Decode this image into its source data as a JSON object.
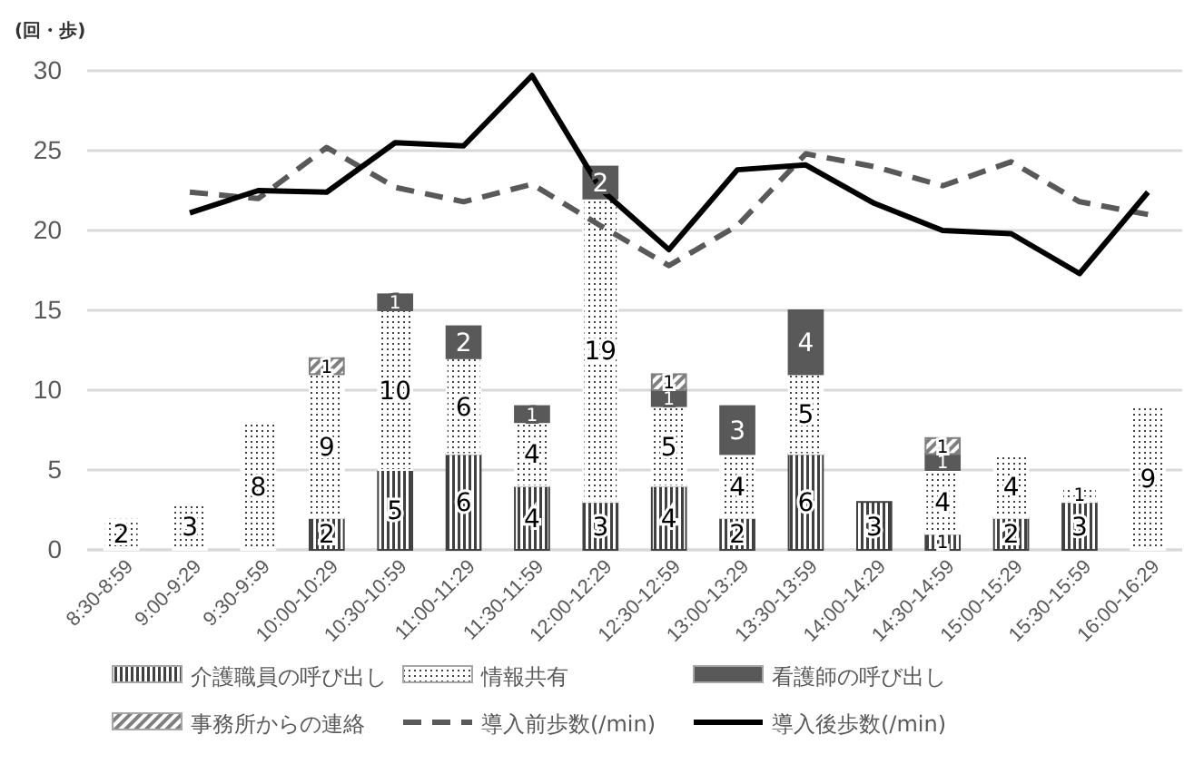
{
  "chart_data": {
    "type": "bar",
    "stacked": true,
    "ylabel": "(回・歩)",
    "categories": [
      "8:30-8:59",
      "9:00-9:29",
      "9:30-9:59",
      "10:00-10:29",
      "10:30-10:59",
      "11:00-11:29",
      "11:30-11:59",
      "12:00-12:29",
      "12:30-12:59",
      "13:00-13:29",
      "13:30-13:59",
      "14:00-14:29",
      "14:30-14:59",
      "15:00-15:29",
      "15:30-15:59",
      "16:00-16:29"
    ],
    "series": [
      {
        "name": "介護職員の呼び出し",
        "color": "#404040",
        "values": [
          null,
          null,
          null,
          2,
          5,
          6,
          4,
          3,
          4,
          2,
          6,
          3,
          1,
          2,
          3,
          null
        ],
        "value_labels": [
          null,
          null,
          null,
          "2",
          "5",
          "6",
          "4",
          "3",
          "4",
          "2",
          "6",
          "3",
          "1",
          "2",
          "3",
          null
        ]
      },
      {
        "name": "情報共有",
        "color": "#ffffff",
        "values": [
          2,
          3,
          8,
          9,
          10,
          6,
          4,
          19,
          5,
          4,
          5,
          null,
          4,
          4,
          1,
          9
        ],
        "value_labels": [
          "2",
          "3",
          "8",
          "9",
          "10",
          "6",
          "4",
          "19",
          "5",
          "4",
          "5",
          null,
          "4",
          "4",
          "1",
          "9"
        ]
      },
      {
        "name": "看護師の呼び出し",
        "color": "#595959",
        "values": [
          null,
          null,
          null,
          null,
          1,
          2,
          1,
          2,
          1,
          3,
          4,
          null,
          1,
          null,
          null,
          null
        ],
        "value_labels": [
          null,
          null,
          null,
          null,
          "1",
          "2",
          "1",
          "2",
          "1",
          "3",
          "4",
          null,
          "1",
          null,
          null,
          null
        ]
      },
      {
        "name": "事務所からの連絡",
        "color": "#7f7f7f",
        "values": [
          null,
          null,
          null,
          1,
          null,
          null,
          null,
          null,
          1,
          null,
          null,
          null,
          1,
          null,
          null,
          null
        ],
        "value_labels": [
          null,
          null,
          null,
          "1",
          null,
          null,
          null,
          null,
          "1",
          null,
          null,
          null,
          "1",
          null,
          null,
          null
        ]
      },
      {
        "name": "導入前歩数(/min)",
        "type": "line",
        "line_style": "dashed",
        "color": "#595959",
        "values": [
          null,
          22.4,
          22.0,
          25.2,
          22.7,
          21.8,
          22.9,
          20.3,
          17.8,
          20.3,
          24.8,
          24.0,
          22.8,
          24.3,
          21.8,
          21.0
        ]
      },
      {
        "name": "導入後歩数(/min)",
        "type": "line",
        "line_style": "solid",
        "color": "#000000",
        "values": [
          null,
          21.1,
          22.5,
          22.4,
          25.5,
          25.3,
          29.7,
          22.6,
          18.8,
          23.8,
          24.1,
          21.7,
          20.0,
          19.8,
          17.3,
          22.4
        ]
      }
    ],
    "ylim": [
      0,
      30
    ],
    "yticks": [
      0,
      5,
      10,
      15,
      20,
      25,
      30
    ],
    "grid": "y",
    "legend": "bottom",
    "marker": "none"
  }
}
